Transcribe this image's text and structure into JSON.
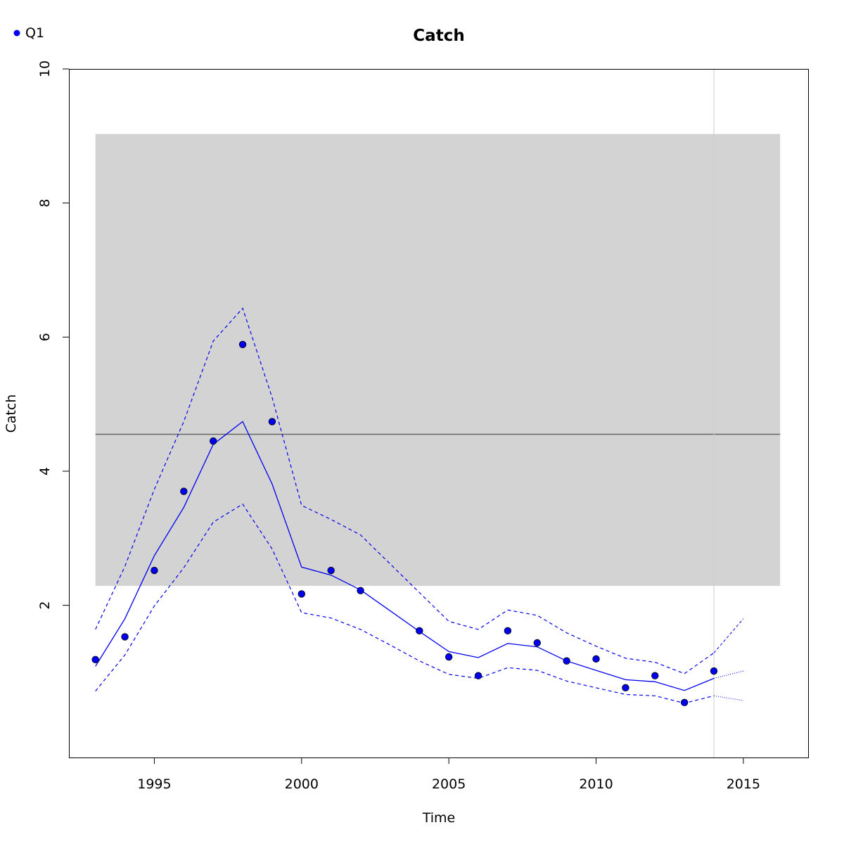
{
  "chart_data": {
    "type": "line",
    "title": "Catch",
    "xlabel": "Time",
    "ylabel": "Catch",
    "xlim": [
      1992.1,
      2017.2
    ],
    "ylim": [
      -0.27,
      10
    ],
    "x_ticks": [
      1995,
      2000,
      2005,
      2010,
      2015
    ],
    "y_ticks": [
      2,
      4,
      6,
      8,
      10
    ],
    "grid": false,
    "legend": {
      "position": "top-left",
      "entries": [
        {
          "label": "Q1",
          "color": "#0000ee",
          "marker": "filled-circle"
        }
      ]
    },
    "reference_band": {
      "x_start": 1993,
      "x_end": 2016.25,
      "y_low": 2.29,
      "y_high": 9.03,
      "color": "#d3d3d3"
    },
    "reference_line": {
      "y": 4.55,
      "color": "#666666"
    },
    "vertical_marker": {
      "x": 2014,
      "color": "#cccccc"
    },
    "series": [
      {
        "name": "Q1",
        "kind": "observed",
        "color": "#0000ee",
        "x": [
          1993,
          1994,
          1995,
          1996,
          1997,
          1998,
          1999,
          2000,
          2001,
          2002,
          2004,
          2005,
          2006,
          2007,
          2008,
          2009,
          2010,
          2011,
          2012,
          2013,
          2014
        ],
        "y": [
          1.19,
          1.53,
          2.52,
          3.7,
          4.45,
          5.89,
          4.74,
          2.17,
          2.52,
          2.22,
          1.62,
          1.23,
          0.95,
          1.62,
          1.44,
          1.17,
          1.2,
          0.77,
          0.95,
          0.55,
          1.02
        ]
      },
      {
        "kind": "fitted",
        "color": "#0000ee",
        "x": [
          1993,
          1994,
          1995,
          1996,
          1997,
          1998,
          1999,
          2000,
          2001,
          2002,
          2003,
          2004,
          2005,
          2006,
          2007,
          2008,
          2009,
          2010,
          2011,
          2012,
          2013,
          2014
        ],
        "y": [
          1.09,
          1.8,
          2.74,
          3.46,
          4.4,
          4.74,
          3.81,
          2.57,
          2.45,
          2.23,
          1.92,
          1.61,
          1.31,
          1.22,
          1.43,
          1.38,
          1.17,
          1.03,
          0.89,
          0.86,
          0.73,
          0.91
        ]
      },
      {
        "kind": "upper-bound",
        "color": "#0000ee",
        "x": [
          1993,
          1994,
          1995,
          1996,
          1997,
          1998,
          1999,
          2000,
          2001,
          2002,
          2003,
          2004,
          2005,
          2006,
          2007,
          2008,
          2009,
          2010,
          2011,
          2012,
          2013,
          2014
        ],
        "y": [
          1.64,
          2.58,
          3.73,
          4.74,
          5.94,
          6.43,
          5.1,
          3.49,
          3.28,
          3.05,
          2.62,
          2.19,
          1.76,
          1.64,
          1.93,
          1.85,
          1.59,
          1.39,
          1.21,
          1.15,
          0.98,
          1.29
        ]
      },
      {
        "kind": "lower-bound",
        "color": "#0000ee",
        "x": [
          1993,
          1994,
          1995,
          1996,
          1997,
          1998,
          1999,
          2000,
          2001,
          2002,
          2003,
          2004,
          2005,
          2006,
          2007,
          2008,
          2009,
          2010,
          2011,
          2012,
          2013,
          2014
        ],
        "y": [
          0.72,
          1.26,
          1.99,
          2.56,
          3.24,
          3.51,
          2.84,
          1.89,
          1.81,
          1.64,
          1.41,
          1.17,
          0.97,
          0.91,
          1.07,
          1.03,
          0.87,
          0.77,
          0.67,
          0.65,
          0.54,
          0.65
        ]
      },
      {
        "kind": "forecast",
        "color": "#0000ee",
        "x": [
          2014,
          2015
        ],
        "y": [
          0.91,
          1.02
        ]
      },
      {
        "kind": "forecast-upper",
        "color": "#0000ee",
        "x": [
          2014,
          2015
        ],
        "y": [
          1.29,
          1.8
        ]
      },
      {
        "kind": "forecast-lower",
        "color": "#0000ee",
        "x": [
          2014,
          2015
        ],
        "y": [
          0.65,
          0.58
        ]
      }
    ]
  }
}
